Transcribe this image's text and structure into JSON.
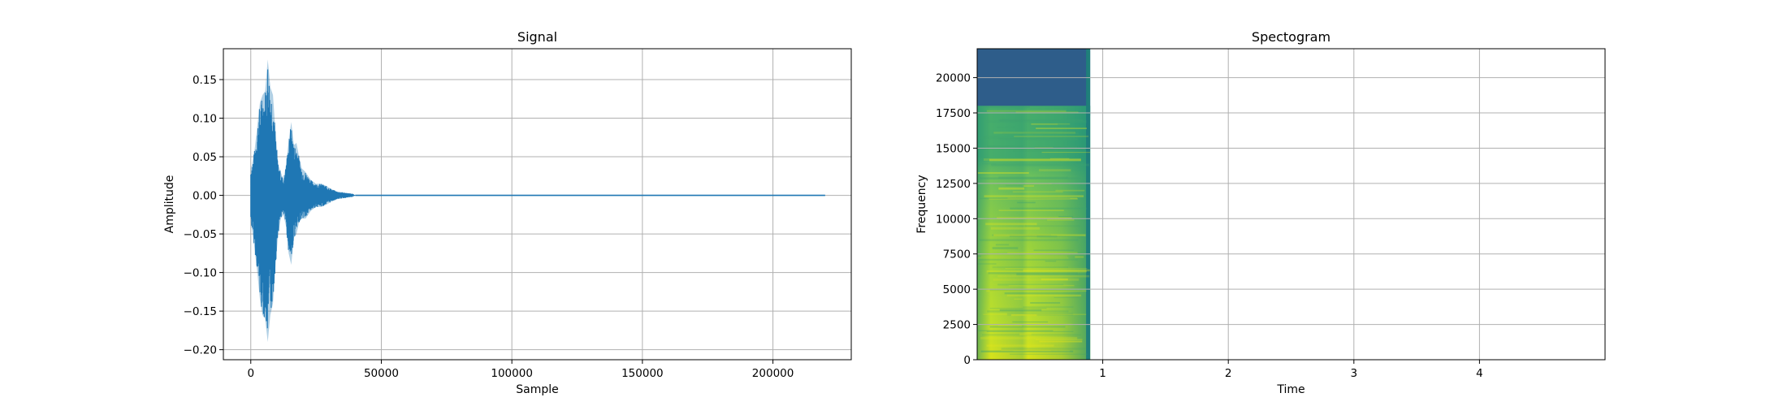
{
  "chart_data": [
    {
      "type": "line",
      "title": "Signal",
      "xlabel": "Sample",
      "ylabel": "Amplitude",
      "xlim": [
        -10500,
        230000
      ],
      "ylim": [
        -0.213,
        0.19
      ],
      "xticks": [
        0,
        50000,
        100000,
        150000,
        200000
      ],
      "xtick_labels": [
        "0",
        "50000",
        "100000",
        "150000",
        "200000"
      ],
      "yticks": [
        -0.2,
        -0.15,
        -0.1,
        -0.05,
        0.0,
        0.05,
        0.1,
        0.15
      ],
      "ytick_labels": [
        "−0.20",
        "−0.15",
        "−0.10",
        "−0.05",
        "0.00",
        "0.05",
        "0.10",
        "0.15"
      ],
      "grid": true,
      "color": "#1f77b4",
      "series": [
        {
          "envelope_x": [
            0,
            500,
            1500,
            2500,
            3500,
            4500,
            5500,
            6500,
            7500,
            8500,
            9500,
            10500,
            11500,
            12500,
            13500,
            14500,
            15500,
            16500,
            17500,
            18500,
            19500,
            21000,
            23000,
            25000,
            27000,
            29000,
            31000,
            33000,
            35000,
            37000,
            39000,
            40000
          ],
          "envelope_max": [
            0.035,
            0.04,
            0.06,
            0.09,
            0.12,
            0.13,
            0.135,
            0.176,
            0.14,
            0.13,
            0.08,
            0.04,
            0.03,
            0.02,
            0.04,
            0.07,
            0.095,
            0.065,
            0.068,
            0.05,
            0.035,
            0.03,
            0.02,
            0.015,
            0.015,
            0.012,
            0.008,
            0.005,
            0.004,
            0.003,
            0.002,
            0.0
          ],
          "envelope_min": [
            -0.035,
            -0.045,
            -0.07,
            -0.1,
            -0.135,
            -0.155,
            -0.16,
            -0.19,
            -0.155,
            -0.14,
            -0.09,
            -0.05,
            -0.03,
            -0.025,
            -0.04,
            -0.075,
            -0.09,
            -0.055,
            -0.05,
            -0.035,
            -0.03,
            -0.03,
            -0.02,
            -0.015,
            -0.015,
            -0.012,
            -0.008,
            -0.005,
            -0.004,
            -0.003,
            -0.002,
            0.0
          ],
          "tail_x": [
            40000,
            220000
          ],
          "tail_y": [
            0.0,
            0.0
          ]
        }
      ]
    },
    {
      "type": "heatmap",
      "title": "Spectogram",
      "xlabel": "Time",
      "ylabel": "Frequency",
      "xlim": [
        0,
        5
      ],
      "ylim": [
        0,
        22050
      ],
      "xticks": [
        1,
        2,
        3,
        4
      ],
      "xtick_labels": [
        "1",
        "2",
        "3",
        "4"
      ],
      "yticks": [
        0,
        2500,
        5000,
        7500,
        10000,
        12500,
        15000,
        17500,
        20000
      ],
      "ytick_labels": [
        "0",
        "2500",
        "5000",
        "7500",
        "10000",
        "12500",
        "15000",
        "17500",
        "20000"
      ],
      "grid": true,
      "colormap": "viridis",
      "data_time_range": [
        0,
        0.9
      ],
      "data_freq_range": [
        0,
        22050
      ],
      "cutoff_frequency_approx": 18000,
      "colors": {
        "background_high": "#2e5d8a",
        "mid": "#2b9a7a",
        "bright": "#c5df1d",
        "edge": "#1f7f7a"
      }
    }
  ]
}
